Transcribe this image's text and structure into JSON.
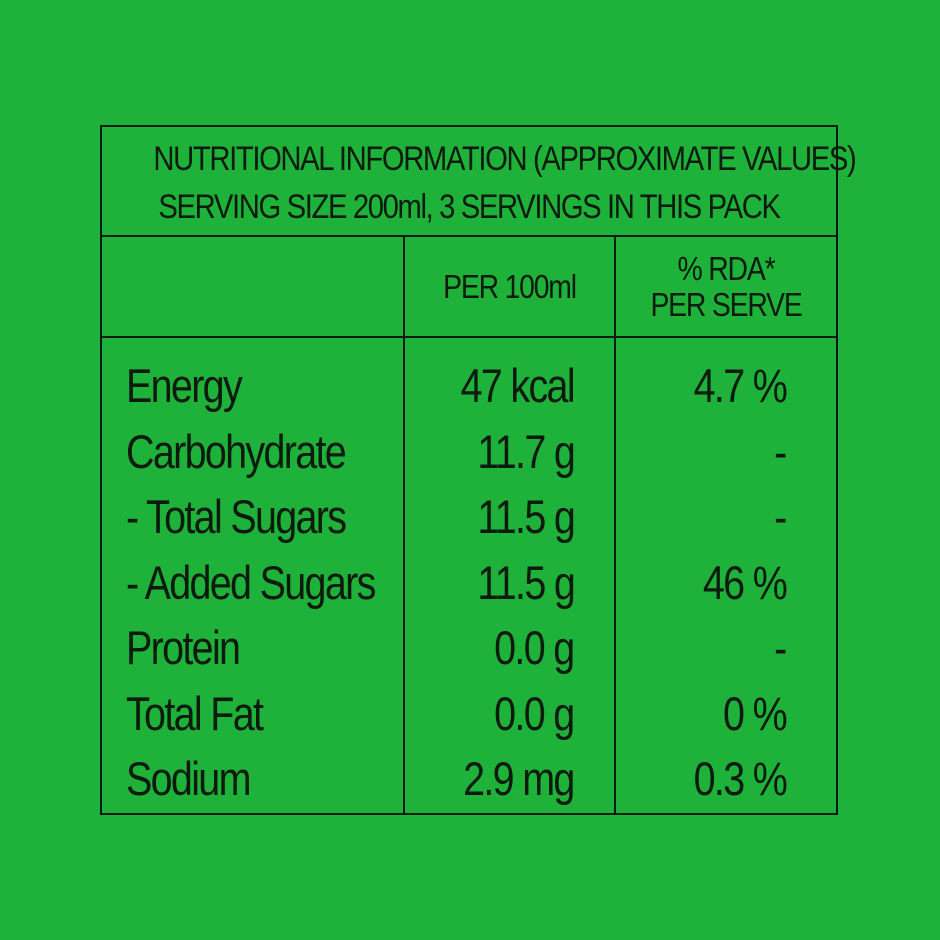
{
  "label": {
    "title_line_1": "NUTRITIONAL INFORMATION (APPROXIMATE VALUES)",
    "title_line_2": "SERVING SIZE 200ml, 3 SERVINGS IN THIS PACK",
    "headers": {
      "nutrient": "",
      "per_100ml": "PER 100ml",
      "rda_line_1": "% RDA*",
      "rda_line_2": "PER SERVE"
    },
    "rows": [
      {
        "name": "Energy",
        "per_100ml": "47 kcal",
        "rda": "4.7 %"
      },
      {
        "name": "Carbohydrate",
        "per_100ml": "11.7 g",
        "rda": "-"
      },
      {
        "name": "- Total Sugars",
        "per_100ml": "11.5 g",
        "rda": "-"
      },
      {
        "name": "- Added Sugars",
        "per_100ml": "11.5 g",
        "rda": "46 %"
      },
      {
        "name": "Protein",
        "per_100ml": "0.0 g",
        "rda": "-"
      },
      {
        "name": "Total Fat",
        "per_100ml": "0.0 g",
        "rda": "0 %"
      },
      {
        "name": "Sodium",
        "per_100ml": "2.9 mg",
        "rda": "0.3 %"
      }
    ]
  },
  "colors": {
    "background": "#1fb23a",
    "ink": "#0d1a0d"
  }
}
